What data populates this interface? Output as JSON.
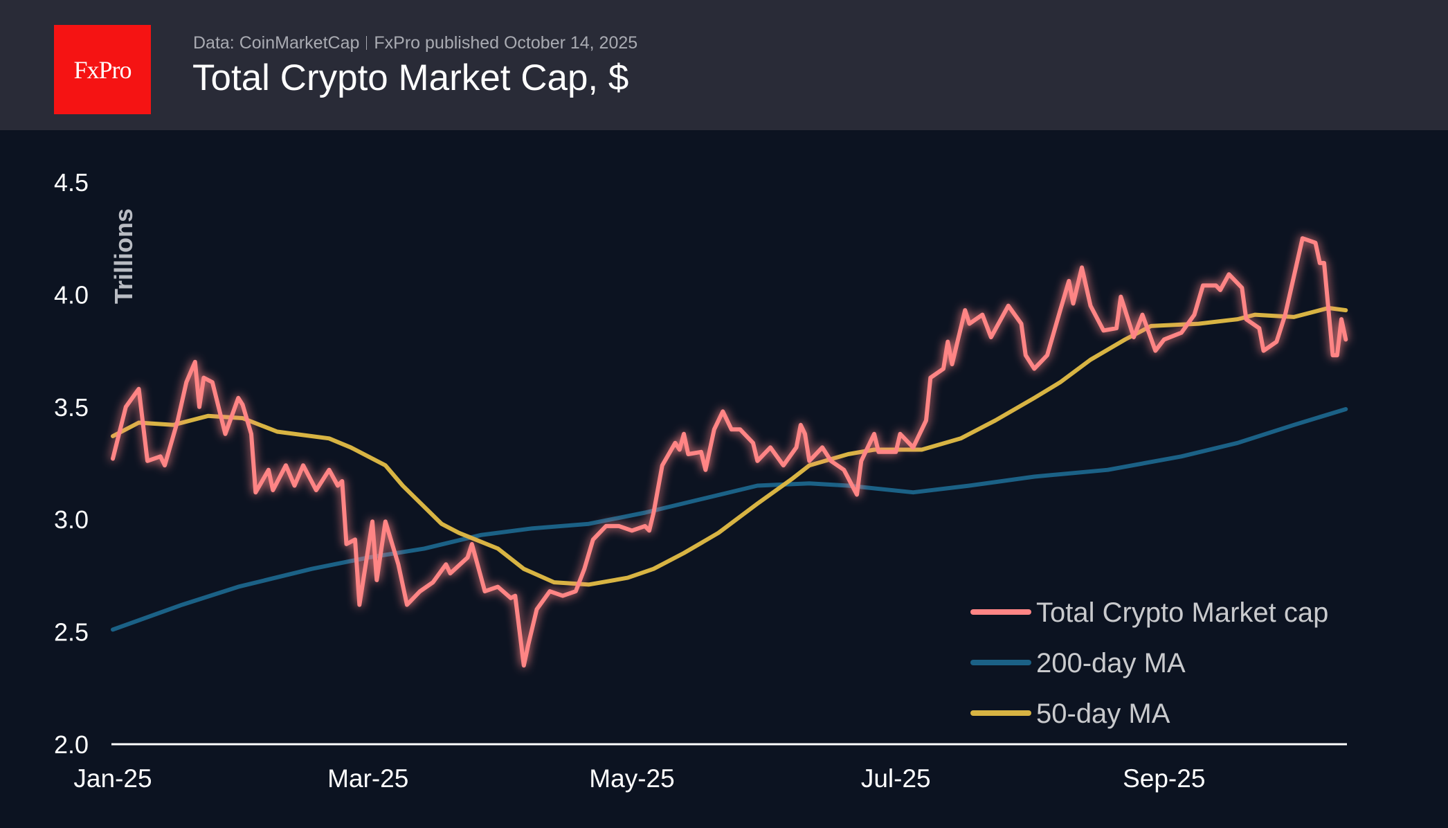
{
  "header": {
    "logo_text": "FxPro",
    "source": "Data: CoinMarketCap",
    "published": "FxPro published October 14, 2025",
    "title": "Total Crypto Market Cap, $"
  },
  "colors": {
    "header_bg": "#292b37",
    "background": "#0c1321",
    "logo": "#f51313",
    "total": "#ff8585",
    "ma200": "#1b6186",
    "ma50": "#d8b443"
  },
  "chart_data": {
    "type": "line",
    "title": "Total Crypto Market Cap, $",
    "ylabel": "Trillions",
    "xlabel": "",
    "ylim": [
      2.0,
      4.5
    ],
    "yticks": [
      "2.0",
      "2.5",
      "3.0",
      "3.5",
      "4.0",
      "4.5"
    ],
    "xticks": [
      {
        "date": "2025-01-01",
        "label": "Jan-25"
      },
      {
        "date": "2025-03-01",
        "label": "Mar-25"
      },
      {
        "date": "2025-05-01",
        "label": "May-25"
      },
      {
        "date": "2025-07-01",
        "label": "Jul-25"
      },
      {
        "date": "2025-09-01",
        "label": "Sep-25"
      }
    ],
    "xlim": [
      "2025-01-01",
      "2025-10-13"
    ],
    "grid": false,
    "legend_position": "bottom-right",
    "series": [
      {
        "name": "Total Crypto Market cap",
        "color": "#ff8585",
        "glow": true,
        "points": [
          [
            "2025-01-01",
            3.27
          ],
          [
            "2025-01-04",
            3.5
          ],
          [
            "2025-01-07",
            3.58
          ],
          [
            "2025-01-09",
            3.26
          ],
          [
            "2025-01-12",
            3.28
          ],
          [
            "2025-01-13",
            3.24
          ],
          [
            "2025-01-16",
            3.44
          ],
          [
            "2025-01-18",
            3.61
          ],
          [
            "2025-01-20",
            3.7
          ],
          [
            "2025-01-21",
            3.5
          ],
          [
            "2025-01-22",
            3.63
          ],
          [
            "2025-01-24",
            3.61
          ],
          [
            "2025-01-27",
            3.38
          ],
          [
            "2025-01-30",
            3.54
          ],
          [
            "2025-01-31",
            3.51
          ],
          [
            "2025-02-02",
            3.38
          ],
          [
            "2025-02-03",
            3.12
          ],
          [
            "2025-02-06",
            3.22
          ],
          [
            "2025-02-07",
            3.13
          ],
          [
            "2025-02-10",
            3.24
          ],
          [
            "2025-02-12",
            3.15
          ],
          [
            "2025-02-14",
            3.24
          ],
          [
            "2025-02-17",
            3.13
          ],
          [
            "2025-02-20",
            3.22
          ],
          [
            "2025-02-22",
            3.15
          ],
          [
            "2025-02-23",
            3.17
          ],
          [
            "2025-02-24",
            2.89
          ],
          [
            "2025-02-26",
            2.91
          ],
          [
            "2025-02-27",
            2.62
          ],
          [
            "2025-03-02",
            2.99
          ],
          [
            "2025-03-03",
            2.73
          ],
          [
            "2025-03-05",
            2.99
          ],
          [
            "2025-03-08",
            2.8
          ],
          [
            "2025-03-10",
            2.62
          ],
          [
            "2025-03-13",
            2.68
          ],
          [
            "2025-03-16",
            2.72
          ],
          [
            "2025-03-19",
            2.8
          ],
          [
            "2025-03-20",
            2.76
          ],
          [
            "2025-03-24",
            2.83
          ],
          [
            "2025-03-25",
            2.89
          ],
          [
            "2025-03-28",
            2.68
          ],
          [
            "2025-03-31",
            2.7
          ],
          [
            "2025-04-03",
            2.65
          ],
          [
            "2025-04-04",
            2.66
          ],
          [
            "2025-04-06",
            2.35
          ],
          [
            "2025-04-07",
            2.44
          ],
          [
            "2025-04-09",
            2.6
          ],
          [
            "2025-04-12",
            2.68
          ],
          [
            "2025-04-15",
            2.66
          ],
          [
            "2025-04-18",
            2.68
          ],
          [
            "2025-04-20",
            2.78
          ],
          [
            "2025-04-22",
            2.91
          ],
          [
            "2025-04-25",
            2.97
          ],
          [
            "2025-04-28",
            2.97
          ],
          [
            "2025-05-01",
            2.95
          ],
          [
            "2025-05-04",
            2.97
          ],
          [
            "2025-05-05",
            2.95
          ],
          [
            "2025-05-06",
            3.03
          ],
          [
            "2025-05-08",
            3.24
          ],
          [
            "2025-05-11",
            3.34
          ],
          [
            "2025-05-12",
            3.31
          ],
          [
            "2025-05-13",
            3.38
          ],
          [
            "2025-05-14",
            3.29
          ],
          [
            "2025-05-17",
            3.3
          ],
          [
            "2025-05-18",
            3.22
          ],
          [
            "2025-05-20",
            3.4
          ],
          [
            "2025-05-22",
            3.48
          ],
          [
            "2025-05-24",
            3.4
          ],
          [
            "2025-05-26",
            3.4
          ],
          [
            "2025-05-29",
            3.34
          ],
          [
            "2025-05-30",
            3.26
          ],
          [
            "2025-06-02",
            3.32
          ],
          [
            "2025-06-05",
            3.24
          ],
          [
            "2025-06-08",
            3.32
          ],
          [
            "2025-06-09",
            3.42
          ],
          [
            "2025-06-10",
            3.38
          ],
          [
            "2025-06-11",
            3.26
          ],
          [
            "2025-06-14",
            3.32
          ],
          [
            "2025-06-16",
            3.26
          ],
          [
            "2025-06-19",
            3.22
          ],
          [
            "2025-06-22",
            3.11
          ],
          [
            "2025-06-23",
            3.26
          ],
          [
            "2025-06-26",
            3.38
          ],
          [
            "2025-06-27",
            3.3
          ],
          [
            "2025-07-01",
            3.3
          ],
          [
            "2025-07-02",
            3.38
          ],
          [
            "2025-07-05",
            3.32
          ],
          [
            "2025-07-08",
            3.44
          ],
          [
            "2025-07-09",
            3.63
          ],
          [
            "2025-07-12",
            3.67
          ],
          [
            "2025-07-13",
            3.79
          ],
          [
            "2025-07-14",
            3.69
          ],
          [
            "2025-07-17",
            3.93
          ],
          [
            "2025-07-18",
            3.87
          ],
          [
            "2025-07-21",
            3.91
          ],
          [
            "2025-07-23",
            3.81
          ],
          [
            "2025-07-27",
            3.95
          ],
          [
            "2025-07-30",
            3.87
          ],
          [
            "2025-07-31",
            3.73
          ],
          [
            "2025-08-02",
            3.67
          ],
          [
            "2025-08-05",
            3.73
          ],
          [
            "2025-08-08",
            3.93
          ],
          [
            "2025-08-10",
            4.06
          ],
          [
            "2025-08-11",
            3.96
          ],
          [
            "2025-08-13",
            4.12
          ],
          [
            "2025-08-15",
            3.95
          ],
          [
            "2025-08-18",
            3.84
          ],
          [
            "2025-08-21",
            3.85
          ],
          [
            "2025-08-22",
            3.99
          ],
          [
            "2025-08-25",
            3.81
          ],
          [
            "2025-08-27",
            3.91
          ],
          [
            "2025-08-30",
            3.75
          ],
          [
            "2025-09-01",
            3.8
          ],
          [
            "2025-09-05",
            3.83
          ],
          [
            "2025-09-08",
            3.91
          ],
          [
            "2025-09-10",
            4.04
          ],
          [
            "2025-09-13",
            4.04
          ],
          [
            "2025-09-14",
            4.02
          ],
          [
            "2025-09-16",
            4.09
          ],
          [
            "2025-09-19",
            4.03
          ],
          [
            "2025-09-20",
            3.89
          ],
          [
            "2025-09-23",
            3.85
          ],
          [
            "2025-09-24",
            3.75
          ],
          [
            "2025-09-27",
            3.79
          ],
          [
            "2025-09-29",
            3.91
          ],
          [
            "2025-10-01",
            4.08
          ],
          [
            "2025-10-03",
            4.25
          ],
          [
            "2025-10-06",
            4.23
          ],
          [
            "2025-10-07",
            4.14
          ],
          [
            "2025-10-08",
            4.14
          ],
          [
            "2025-10-10",
            3.73
          ],
          [
            "2025-10-11",
            3.73
          ],
          [
            "2025-10-12",
            3.89
          ],
          [
            "2025-10-13",
            3.8
          ]
        ]
      },
      {
        "name": "200-day MA",
        "color": "#1b6186",
        "points": [
          [
            "2025-01-01",
            2.51
          ],
          [
            "2025-01-17",
            2.62
          ],
          [
            "2025-01-30",
            2.7
          ],
          [
            "2025-02-16",
            2.78
          ],
          [
            "2025-03-01",
            2.83
          ],
          [
            "2025-03-14",
            2.87
          ],
          [
            "2025-03-27",
            2.93
          ],
          [
            "2025-04-08",
            2.96
          ],
          [
            "2025-04-21",
            2.98
          ],
          [
            "2025-05-04",
            3.03
          ],
          [
            "2025-05-17",
            3.09
          ],
          [
            "2025-05-30",
            3.15
          ],
          [
            "2025-06-11",
            3.16
          ],
          [
            "2025-06-20",
            3.15
          ],
          [
            "2025-07-05",
            3.12
          ],
          [
            "2025-07-18",
            3.15
          ],
          [
            "2025-08-02",
            3.19
          ],
          [
            "2025-08-19",
            3.22
          ],
          [
            "2025-09-05",
            3.28
          ],
          [
            "2025-09-18",
            3.34
          ],
          [
            "2025-10-01",
            3.42
          ],
          [
            "2025-10-13",
            3.49
          ]
        ]
      },
      {
        "name": "50-day MA",
        "color": "#d8b443",
        "points": [
          [
            "2025-01-01",
            3.37
          ],
          [
            "2025-01-07",
            3.43
          ],
          [
            "2025-01-15",
            3.42
          ],
          [
            "2025-01-23",
            3.46
          ],
          [
            "2025-01-31",
            3.45
          ],
          [
            "2025-02-08",
            3.39
          ],
          [
            "2025-02-20",
            3.36
          ],
          [
            "2025-02-25",
            3.32
          ],
          [
            "2025-03-05",
            3.24
          ],
          [
            "2025-03-09",
            3.15
          ],
          [
            "2025-03-18",
            2.98
          ],
          [
            "2025-03-22",
            2.94
          ],
          [
            "2025-03-31",
            2.87
          ],
          [
            "2025-04-06",
            2.78
          ],
          [
            "2025-04-13",
            2.72
          ],
          [
            "2025-04-21",
            2.71
          ],
          [
            "2025-04-30",
            2.74
          ],
          [
            "2025-05-06",
            2.78
          ],
          [
            "2025-05-13",
            2.85
          ],
          [
            "2025-05-21",
            2.94
          ],
          [
            "2025-05-30",
            3.07
          ],
          [
            "2025-06-07",
            3.18
          ],
          [
            "2025-06-11",
            3.24
          ],
          [
            "2025-06-20",
            3.29
          ],
          [
            "2025-06-26",
            3.31
          ],
          [
            "2025-07-07",
            3.31
          ],
          [
            "2025-07-16",
            3.36
          ],
          [
            "2025-07-24",
            3.44
          ],
          [
            "2025-08-02",
            3.54
          ],
          [
            "2025-08-08",
            3.61
          ],
          [
            "2025-08-15",
            3.71
          ],
          [
            "2025-08-23",
            3.8
          ],
          [
            "2025-08-29",
            3.86
          ],
          [
            "2025-09-09",
            3.87
          ],
          [
            "2025-09-18",
            3.89
          ],
          [
            "2025-09-22",
            3.91
          ],
          [
            "2025-10-01",
            3.9
          ],
          [
            "2025-10-09",
            3.94
          ],
          [
            "2025-10-13",
            3.93
          ]
        ]
      }
    ]
  }
}
